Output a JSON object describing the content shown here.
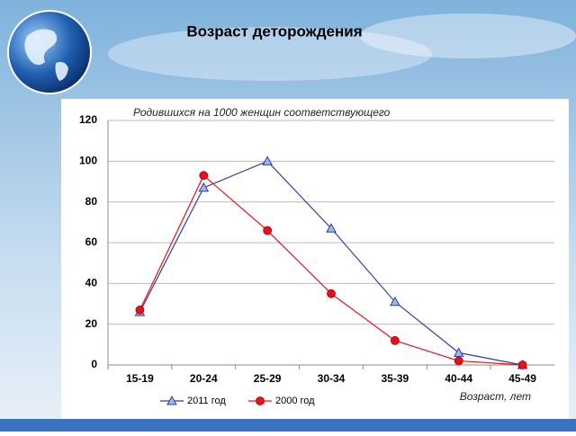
{
  "chart_data": {
    "type": "line",
    "title": "Возраст деторождения",
    "y_label": "Родившихся на 1000 женщин соответствующего",
    "x_label": "Возраст, лет",
    "categories": [
      "15-19",
      "20-24",
      "25-29",
      "30-34",
      "35-39",
      "40-44",
      "45-49"
    ],
    "series": [
      {
        "name": "2011 год",
        "color": "#2f3f9e",
        "marker": "triangle",
        "values": [
          26,
          87,
          100,
          67,
          31,
          6,
          0
        ]
      },
      {
        "name": "2000 год",
        "color": "#e8101a",
        "marker": "circle",
        "values": [
          27,
          93,
          66,
          35,
          12,
          2,
          0
        ]
      }
    ],
    "ylim": [
      0,
      120
    ],
    "yticks": [
      0,
      20,
      40,
      60,
      80,
      100,
      120
    ],
    "grid": true
  }
}
